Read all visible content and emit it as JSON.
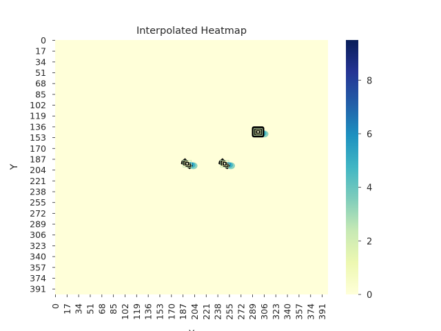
{
  "chart_data": {
    "type": "heatmap",
    "title": "Interpolated Heatmap",
    "xlabel": "X",
    "ylabel": "Y",
    "grid_size": [
      400,
      400
    ],
    "xticks": [
      0,
      17,
      34,
      51,
      68,
      85,
      102,
      119,
      136,
      153,
      170,
      187,
      204,
      221,
      238,
      255,
      272,
      289,
      306,
      323,
      340,
      357,
      374,
      391
    ],
    "yticks": [
      0,
      17,
      34,
      51,
      68,
      85,
      102,
      119,
      136,
      153,
      170,
      187,
      204,
      221,
      238,
      255,
      272,
      289,
      306,
      323,
      340,
      357,
      374,
      391
    ],
    "colorbar": {
      "min": 0,
      "max": 9.5,
      "ticks": [
        0,
        2,
        4,
        6,
        8
      ],
      "colormap": "YlGnBu",
      "stops": [
        "#ffffd9",
        "#edf8b1",
        "#c7e9b4",
        "#7fcdbb",
        "#41b6c4",
        "#1d91c0",
        "#225ea8",
        "#253494",
        "#081d58"
      ]
    },
    "background_value": 0,
    "hotspots": [
      {
        "x": 297,
        "y": 144,
        "peak": 9.5
      },
      {
        "x": 248,
        "y": 194,
        "peak": 8.5
      },
      {
        "x": 193,
        "y": 194,
        "peak": 8
      }
    ],
    "contour_color": "#000000"
  }
}
